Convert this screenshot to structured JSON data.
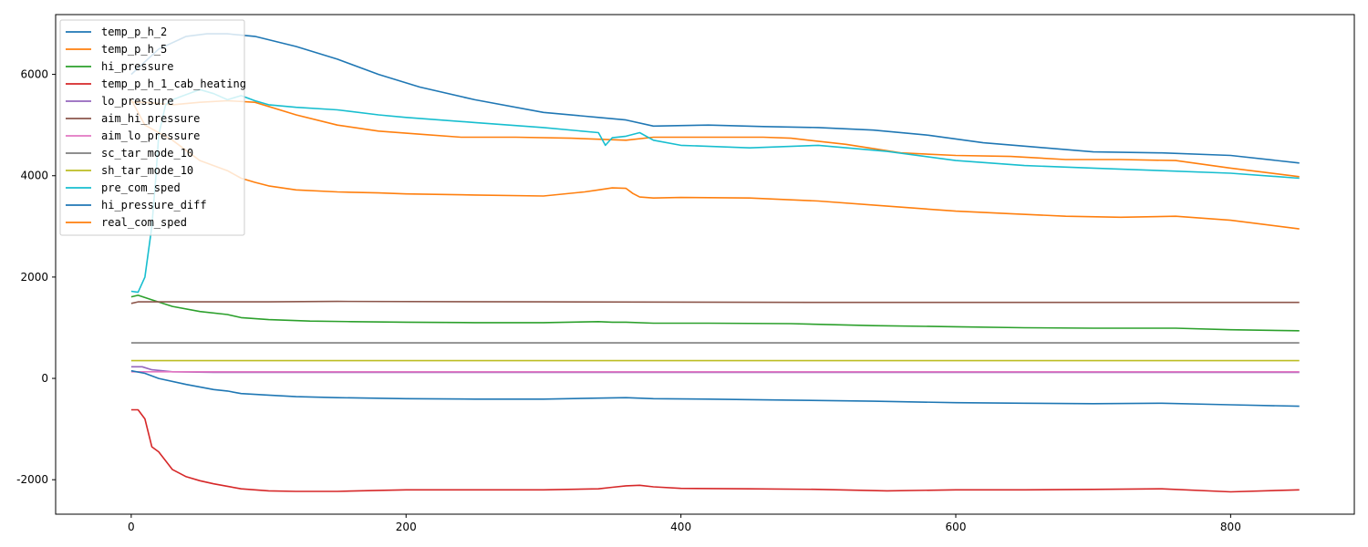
{
  "chart_data": {
    "type": "line",
    "title": "",
    "xlabel": "",
    "ylabel": "",
    "xlim": [
      -55,
      890
    ],
    "ylim": [
      -2680,
      7180
    ],
    "xticks": [
      0,
      200,
      400,
      600,
      800
    ],
    "yticks": [
      -2000,
      0,
      2000,
      4000,
      6000
    ],
    "legend_position": "top-left",
    "grid": false,
    "series": [
      {
        "name": "temp_p_h_2",
        "color": "#1f77b4",
        "x": [
          0,
          20,
          40,
          55,
          70,
          90,
          120,
          150,
          180,
          210,
          250,
          300,
          340,
          360,
          380,
          420,
          460,
          500,
          540,
          580,
          620,
          660,
          700,
          750,
          800,
          850
        ],
        "y": [
          6000,
          6500,
          6750,
          6800,
          6800,
          6750,
          6550,
          6300,
          6000,
          5750,
          5500,
          5250,
          5150,
          5100,
          4980,
          5000,
          4970,
          4950,
          4900,
          4800,
          4650,
          4560,
          4470,
          4450,
          4400,
          4250
        ]
      },
      {
        "name": "temp_p_h_5",
        "color": "#ff7f0e",
        "x": [
          0,
          10,
          30,
          50,
          70,
          90,
          120,
          150,
          180,
          210,
          240,
          280,
          320,
          360,
          380,
          420,
          460,
          480,
          520,
          560,
          600,
          640,
          680,
          720,
          760,
          800,
          850
        ],
        "y": [
          5450,
          5450,
          5400,
          5450,
          5480,
          5450,
          5200,
          5000,
          4880,
          4820,
          4760,
          4760,
          4740,
          4700,
          4760,
          4760,
          4760,
          4740,
          4620,
          4450,
          4400,
          4380,
          4320,
          4320,
          4300,
          4150,
          3980
        ]
      },
      {
        "name": "hi_pressure",
        "color": "#2ca02c",
        "x": [
          0,
          5,
          15,
          30,
          50,
          70,
          80,
          100,
          130,
          160,
          200,
          250,
          300,
          340,
          350,
          360,
          380,
          420,
          480,
          540,
          600,
          650,
          700,
          760,
          800,
          850
        ],
        "y": [
          1610,
          1640,
          1550,
          1420,
          1320,
          1260,
          1200,
          1160,
          1130,
          1120,
          1110,
          1100,
          1100,
          1120,
          1110,
          1110,
          1090,
          1090,
          1080,
          1040,
          1020,
          1000,
          990,
          990,
          960,
          940
        ]
      },
      {
        "name": "temp_p_h_1_cab_heating",
        "color": "#d62728",
        "x": [
          0,
          5,
          10,
          15,
          20,
          30,
          40,
          50,
          60,
          70,
          80,
          90,
          100,
          120,
          150,
          180,
          200,
          250,
          300,
          340,
          350,
          360,
          370,
          380,
          400,
          450,
          500,
          550,
          600,
          650,
          700,
          750,
          800,
          850
        ],
        "y": [
          -620,
          -620,
          -800,
          -1350,
          -1450,
          -1800,
          -1940,
          -2020,
          -2080,
          -2130,
          -2180,
          -2200,
          -2220,
          -2230,
          -2230,
          -2210,
          -2200,
          -2200,
          -2200,
          -2180,
          -2150,
          -2120,
          -2110,
          -2140,
          -2170,
          -2180,
          -2190,
          -2220,
          -2200,
          -2200,
          -2190,
          -2180,
          -2240,
          -2200
        ]
      },
      {
        "name": "lo_pressure",
        "color": "#9467bd",
        "x": [
          0,
          8,
          15,
          30,
          60,
          100,
          200,
          400,
          600,
          850
        ],
        "y": [
          230,
          230,
          170,
          130,
          120,
          120,
          120,
          120,
          120,
          120
        ]
      },
      {
        "name": "aim_hi_pressure",
        "color": "#8c564b",
        "x": [
          0,
          5,
          100,
          150,
          300,
          500,
          700,
          850
        ],
        "y": [
          1480,
          1510,
          1510,
          1520,
          1510,
          1500,
          1500,
          1500
        ]
      },
      {
        "name": "aim_lo_pressure",
        "color": "#e377c2",
        "x": [
          0,
          20,
          850
        ],
        "y": [
          130,
          130,
          130
        ]
      },
      {
        "name": "sc_tar_mode_10",
        "color": "#7f7f7f",
        "x": [
          0,
          850
        ],
        "y": [
          700,
          700
        ]
      },
      {
        "name": "sh_tar_mode_10",
        "color": "#bcbd22",
        "x": [
          0,
          850
        ],
        "y": [
          350,
          350
        ]
      },
      {
        "name": "pre_com_sped",
        "color": "#17becf",
        "x": [
          0,
          5,
          10,
          15,
          18,
          20,
          25,
          30,
          40,
          50,
          60,
          70,
          80,
          90,
          100,
          120,
          150,
          180,
          200,
          250,
          300,
          340,
          345,
          350,
          360,
          370,
          380,
          400,
          450,
          500,
          550,
          600,
          650,
          700,
          750,
          800,
          850
        ],
        "y": [
          1720,
          1700,
          2000,
          3000,
          4000,
          4800,
          5400,
          5500,
          5600,
          5700,
          5620,
          5500,
          5580,
          5480,
          5400,
          5350,
          5300,
          5200,
          5150,
          5050,
          4950,
          4850,
          4600,
          4750,
          4780,
          4850,
          4700,
          4600,
          4550,
          4600,
          4480,
          4300,
          4200,
          4150,
          4100,
          4050,
          3950
        ]
      },
      {
        "name": "hi_pressure_diff",
        "color": "#1f77b4",
        "x": [
          0,
          10,
          20,
          40,
          60,
          70,
          80,
          100,
          120,
          150,
          200,
          250,
          300,
          340,
          360,
          380,
          420,
          480,
          540,
          600,
          650,
          700,
          750,
          800,
          850
        ],
        "y": [
          150,
          100,
          0,
          -120,
          -220,
          -250,
          -300,
          -330,
          -360,
          -380,
          -400,
          -410,
          -410,
          -390,
          -380,
          -400,
          -410,
          -430,
          -450,
          -480,
          -490,
          -500,
          -490,
          -520,
          -550
        ]
      },
      {
        "name": "real_com_sped",
        "color": "#ff7f0e",
        "x": [
          0,
          10,
          30,
          50,
          70,
          80,
          90,
          100,
          120,
          150,
          180,
          200,
          250,
          300,
          330,
          340,
          350,
          360,
          365,
          370,
          380,
          400,
          450,
          500,
          550,
          600,
          640,
          680,
          720,
          760,
          800,
          850
        ],
        "y": [
          5500,
          5000,
          4700,
          4300,
          4100,
          3950,
          3870,
          3800,
          3720,
          3680,
          3660,
          3640,
          3620,
          3600,
          3680,
          3720,
          3760,
          3750,
          3650,
          3580,
          3560,
          3570,
          3560,
          3500,
          3400,
          3300,
          3250,
          3200,
          3180,
          3200,
          3120,
          2950
        ]
      }
    ]
  }
}
